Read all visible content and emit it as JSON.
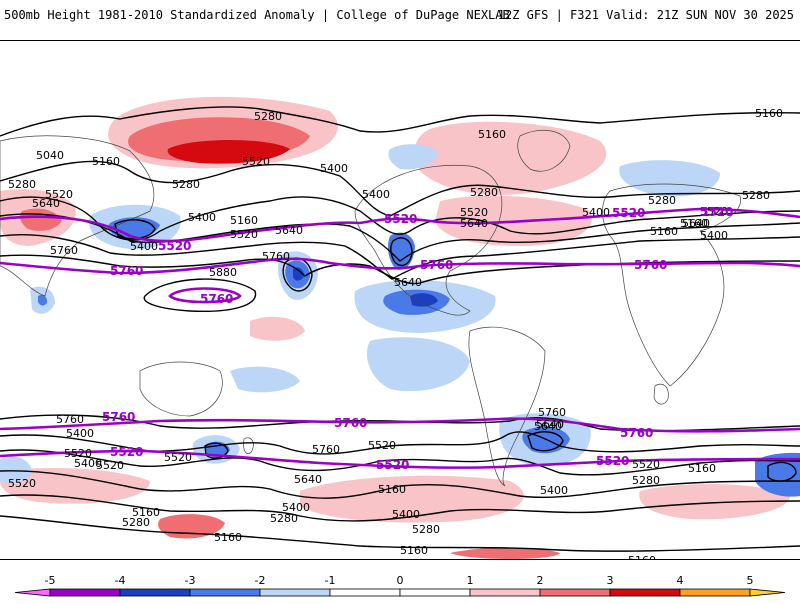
{
  "header": {
    "left_title": "500mb Height 1981-2010 Standardized Anomaly | College of DuPage NEXLAB",
    "right_title": "12Z GFS | F321 Valid: 21Z SUN NOV 30 2025"
  },
  "colorbar": {
    "ticks": [
      "-5",
      "-4",
      "-3",
      "-2",
      "-1",
      "0",
      "1",
      "2",
      "3",
      "4",
      "5"
    ],
    "bins": [
      {
        "from": -5.5,
        "to": -5,
        "color": "#ff66ff"
      },
      {
        "from": -5,
        "to": -4,
        "color": "#9a00c8"
      },
      {
        "from": -4,
        "to": -3,
        "color": "#1a3fbf"
      },
      {
        "from": -3,
        "to": -2,
        "color": "#4a7ae8"
      },
      {
        "from": -2,
        "to": -1,
        "color": "#bcd6f7"
      },
      {
        "from": -1,
        "to": 0,
        "color": "#ffffff"
      },
      {
        "from": 0,
        "to": 1,
        "color": "#ffffff"
      },
      {
        "from": 1,
        "to": 2,
        "color": "#f8c4c8"
      },
      {
        "from": 2,
        "to": 3,
        "color": "#ee6e72"
      },
      {
        "from": 3,
        "to": 4,
        "color": "#d40a10"
      },
      {
        "from": 4,
        "to": 5,
        "color": "#ffa020"
      },
      {
        "from": 5,
        "to": 5.5,
        "color": "#ffcc33"
      }
    ]
  },
  "contour_labels": {
    "black": [
      "5280",
      "5160",
      "5040",
      "5160",
      "5280",
      "5520",
      "5640",
      "5400",
      "5280",
      "5160",
      "5520",
      "5400",
      "5280",
      "5640",
      "5760",
      "5400",
      "5160",
      "5520",
      "5880",
      "5760",
      "5400",
      "5520",
      "5640",
      "5400",
      "5280",
      "5160",
      "5280",
      "5520",
      "5640",
      "5400",
      "5160",
      "5640",
      "5760",
      "5400",
      "5520",
      "5760",
      "5640",
      "5520",
      "5400",
      "5280",
      "5520",
      "5640",
      "5520",
      "5400",
      "5280",
      "5160",
      "5160",
      "5280",
      "5400",
      "5160",
      "5160",
      "5520",
      "5280",
      "5160",
      "5760",
      "5640",
      "5520",
      "5400",
      "5160"
    ],
    "purple": [
      "5520",
      "5520",
      "5760",
      "5520",
      "5760",
      "5520",
      "5760",
      "5760",
      "5760",
      "5760",
      "5520",
      "5520",
      "5760",
      "5520"
    ]
  },
  "colors": {
    "contour": "#000000",
    "purple_contour": "#9a00c8",
    "neg1": "#bcd6f7",
    "neg2": "#4a7ae8",
    "neg3": "#1a3fbf",
    "pos1": "#f8c4c8",
    "pos2": "#ee6e72",
    "pos3": "#d40a10"
  }
}
